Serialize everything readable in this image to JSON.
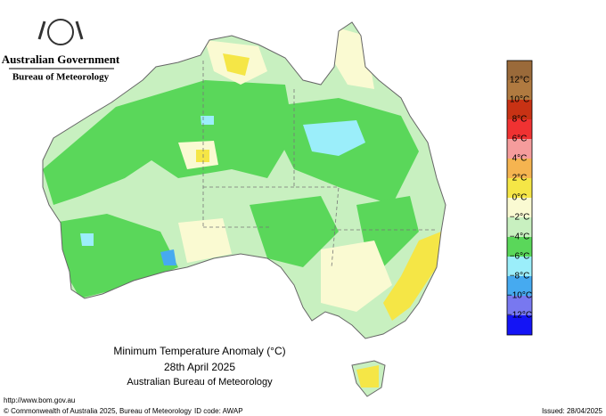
{
  "header": {
    "government": "Australian Government",
    "agency": "Bureau of Meteorology"
  },
  "title": {
    "line1": "Minimum Temperature Anomaly (°C)",
    "line2": "28th April 2025",
    "line3": "Australian Bureau of Meteorology"
  },
  "legend": {
    "labels": [
      "12°C",
      "10°C",
      "8°C",
      "6°C",
      "4°C",
      "2°C",
      "0°C",
      "−2°C",
      "−4°C",
      "−6°C",
      "−8°C",
      "−10°C",
      "−12°C"
    ],
    "colors": [
      "#b07a40",
      "#c83214",
      "#f03232",
      "#f59c9c",
      "#f5b450",
      "#f5e646",
      "#fafad2",
      "#c8f0c0",
      "#5ad75a",
      "#9beefa",
      "#46aaf0",
      "#7878f0",
      "#1414f5"
    ]
  },
  "footer": {
    "url": "http://www.bom.gov.au",
    "copyright": "© Commonwealth of Australia 2025, Bureau of Meteorology",
    "id_code": "ID code: AWAP",
    "issued": "Issued: 28/04/2025"
  }
}
